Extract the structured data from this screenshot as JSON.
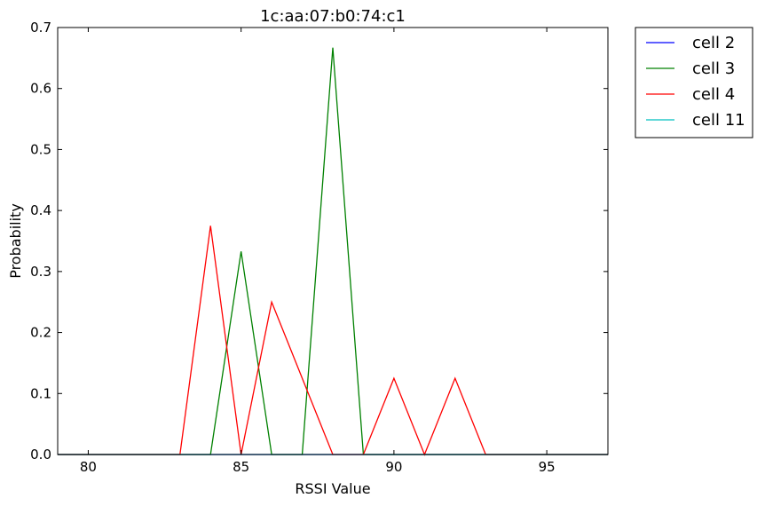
{
  "chart_data": {
    "type": "line",
    "title": "1c:aa:07:b0:74:c1",
    "xlabel": "RSSI Value",
    "ylabel": "Probability",
    "xlim": [
      79,
      97
    ],
    "ylim": [
      0.0,
      0.7
    ],
    "xticks": [
      80,
      85,
      90,
      95
    ],
    "yticks": [
      0.0,
      0.1,
      0.2,
      0.3,
      0.4,
      0.5,
      0.6,
      0.7
    ],
    "xtick_labels": [
      "80",
      "85",
      "90",
      "95"
    ],
    "ytick_labels": [
      "0.0",
      "0.1",
      "0.2",
      "0.3",
      "0.4",
      "0.5",
      "0.6",
      "0.7"
    ],
    "grid": false,
    "legend_position": "outside-top-right",
    "x": [
      79,
      80,
      81,
      82,
      83,
      84,
      85,
      86,
      87,
      88,
      89,
      90,
      91,
      92,
      93,
      94,
      95,
      96,
      97
    ],
    "series": [
      {
        "name": "cell 2",
        "color": "#0000ff",
        "values": [
          0,
          0,
          0,
          0,
          0,
          0,
          0,
          0,
          0,
          0,
          0,
          0,
          0,
          0,
          0,
          0,
          0,
          0,
          0
        ]
      },
      {
        "name": "cell 3",
        "color": "#008000",
        "values": [
          0,
          0,
          0,
          0,
          0,
          0,
          0.333,
          0,
          0,
          0.667,
          0,
          0,
          0,
          0,
          0,
          0,
          0,
          0,
          0
        ]
      },
      {
        "name": "cell 4",
        "color": "#ff0000",
        "values": [
          0,
          0,
          0,
          0,
          0,
          0.375,
          0,
          0.25,
          0.125,
          0,
          0,
          0.125,
          0,
          0.125,
          0,
          0,
          0,
          0,
          0
        ]
      },
      {
        "name": "cell 11",
        "color": "#00bfbf",
        "values": [
          0,
          0,
          0,
          0,
          0,
          0,
          0,
          0,
          0,
          0,
          0,
          0,
          0,
          0,
          0,
          0,
          0,
          0,
          0
        ]
      }
    ]
  }
}
